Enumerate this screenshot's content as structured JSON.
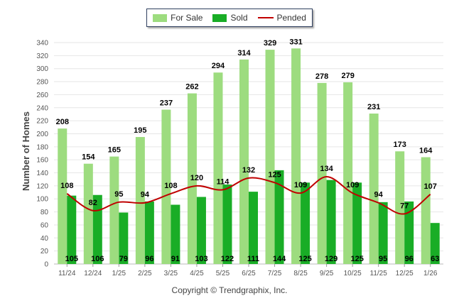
{
  "legend": {
    "items": [
      {
        "key": "for_sale",
        "label": "For Sale",
        "kind": "bar",
        "color": "#9ddc7f"
      },
      {
        "key": "sold",
        "label": "Sold",
        "kind": "bar",
        "color": "#19ad26"
      },
      {
        "key": "pended",
        "label": "Pended",
        "kind": "line",
        "color": "#c00000"
      }
    ]
  },
  "footer": {
    "copyright": "Copyright © Trendgraphix, Inc."
  },
  "chart_data": {
    "type": "bar",
    "title": "",
    "xlabel": "",
    "ylabel": "Number of Homes",
    "ylim": [
      0,
      340
    ],
    "ytick_step": 20,
    "grid": true,
    "legend_position": "top-center",
    "categories": [
      "11/24",
      "12/24",
      "1/25",
      "2/25",
      "3/25",
      "4/25",
      "5/25",
      "6/25",
      "7/25",
      "8/25",
      "9/25",
      "10/25",
      "11/25",
      "12/25",
      "1/26"
    ],
    "series": [
      {
        "name": "For Sale",
        "type": "bar",
        "color": "#9ddc7f",
        "values": [
          208,
          154,
          165,
          195,
          237,
          262,
          294,
          314,
          329,
          331,
          278,
          279,
          231,
          173,
          164
        ]
      },
      {
        "name": "Sold",
        "type": "bar",
        "color": "#19ad26",
        "values": [
          105,
          106,
          79,
          96,
          91,
          103,
          122,
          111,
          144,
          125,
          129,
          125,
          95,
          96,
          63
        ]
      },
      {
        "name": "Pended",
        "type": "line",
        "color": "#c00000",
        "values": [
          108,
          82,
          95,
          94,
          108,
          120,
          114,
          132,
          125,
          109,
          134,
          109,
          94,
          77,
          107
        ]
      }
    ]
  }
}
